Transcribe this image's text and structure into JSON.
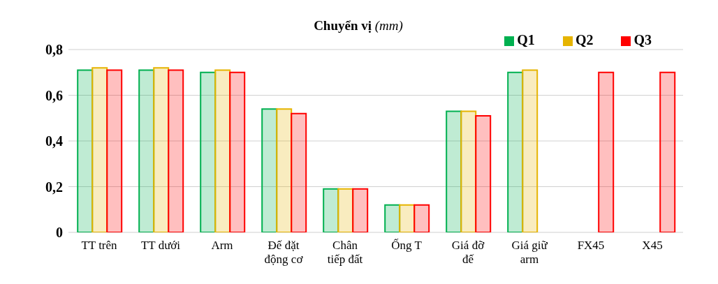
{
  "chart_data": {
    "type": "bar",
    "title": "Chuyển vị (mm)",
    "categories": [
      "TT trên",
      "TT dưới",
      "Arm",
      "Đế đặt động cơ",
      "Chân tiếp đất",
      "Ống T",
      "Giá đỡ đế",
      "Giá giữ arm",
      "FX45",
      "X45"
    ],
    "series": [
      {
        "name": "Q1",
        "color": "#00b050",
        "values": [
          0.71,
          0.71,
          0.7,
          0.54,
          0.19,
          0.12,
          0.53,
          0.7,
          null,
          null
        ]
      },
      {
        "name": "Q2",
        "color": "#e6b400",
        "values": [
          0.72,
          0.72,
          0.71,
          0.54,
          0.19,
          0.12,
          0.53,
          0.71,
          null,
          null
        ]
      },
      {
        "name": "Q3",
        "color": "#ff0000",
        "values": [
          0.71,
          0.71,
          0.7,
          0.52,
          0.19,
          0.12,
          0.51,
          null,
          0.7,
          0.7
        ]
      }
    ],
    "ylim": [
      0,
      0.8
    ],
    "yticks": [
      {
        "value": 0,
        "label": "0"
      },
      {
        "value": 0.2,
        "label": "0,2"
      },
      {
        "value": 0.4,
        "label": "0,4"
      },
      {
        "value": 0.6,
        "label": "0,6"
      },
      {
        "value": 0.8,
        "label": "0,8"
      }
    ],
    "grid": "y",
    "legend": "top right"
  }
}
